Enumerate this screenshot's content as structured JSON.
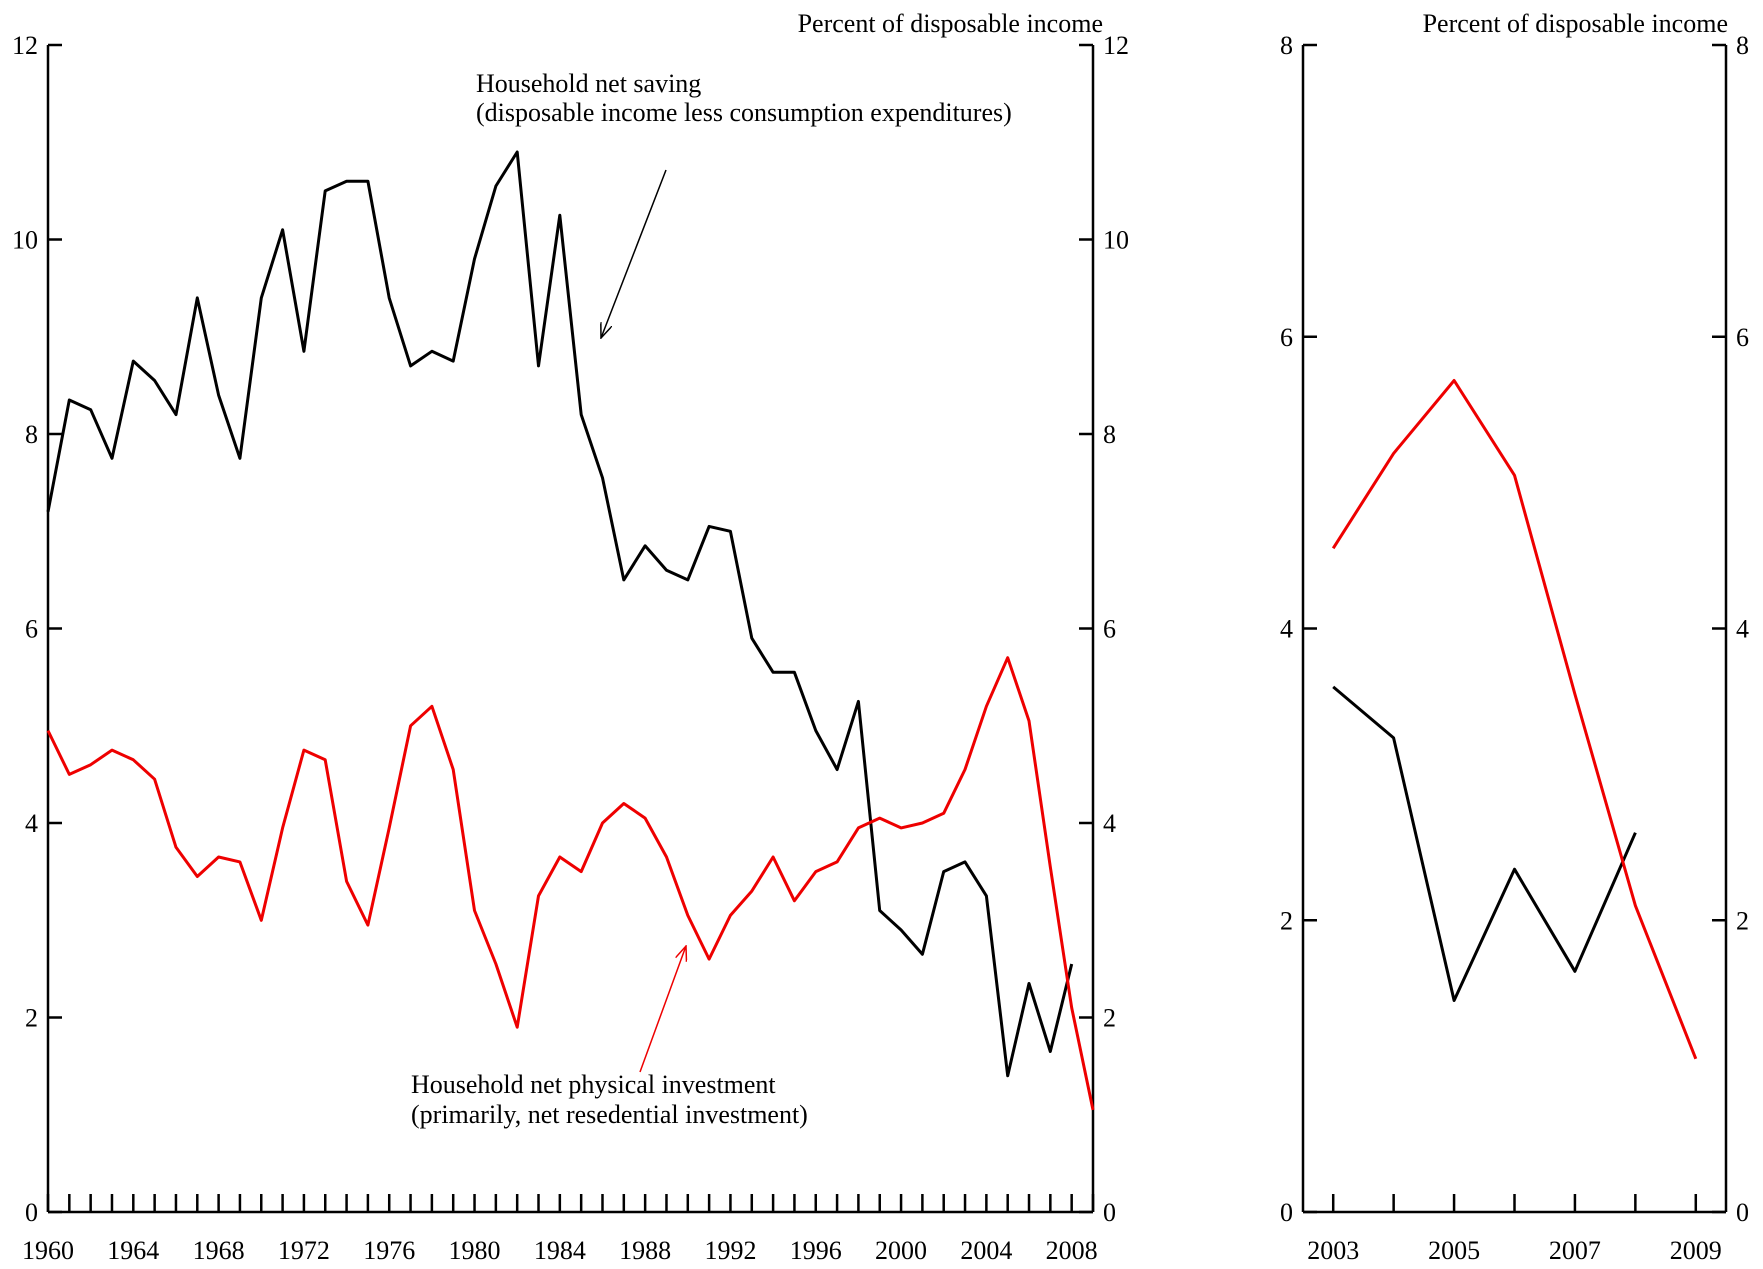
{
  "colors": {
    "saving": "#000000",
    "investment": "#ee0000",
    "axis": "#000000"
  },
  "chart_data": [
    {
      "type": "line",
      "units_label": "Percent of disposable income",
      "xlim": [
        1960,
        2009
      ],
      "ylim": [
        0,
        12
      ],
      "y_ticks": [
        0,
        2,
        4,
        6,
        8,
        10,
        12
      ],
      "x_tick_labels": [
        "1960",
        "1964",
        "1968",
        "1972",
        "1976",
        "1980",
        "1984",
        "1988",
        "1992",
        "1996",
        "2000",
        "2004",
        "2008"
      ],
      "grid": false,
      "annotations": {
        "saving": [
          "Household net saving",
          "(disposable income less consumption expenditures)"
        ],
        "investment": [
          "Household net physical investment",
          "(primarily, net resedential investment)"
        ]
      },
      "series": [
        {
          "key": "saving",
          "x": [
            1960,
            1961,
            1962,
            1963,
            1964,
            1965,
            1966,
            1967,
            1968,
            1969,
            1970,
            1971,
            1972,
            1973,
            1974,
            1975,
            1976,
            1977,
            1978,
            1979,
            1980,
            1981,
            1982,
            1983,
            1984,
            1985,
            1986,
            1987,
            1988,
            1989,
            1990,
            1991,
            1992,
            1993,
            1994,
            1995,
            1996,
            1997,
            1998,
            1999,
            2000,
            2001,
            2002,
            2003,
            2004,
            2005,
            2006,
            2007,
            2008
          ],
          "values": [
            7.2,
            8.35,
            8.25,
            7.75,
            8.75,
            8.55,
            8.2,
            9.4,
            8.4,
            7.75,
            9.4,
            10.1,
            8.85,
            10.5,
            10.6,
            10.6,
            9.4,
            8.7,
            8.85,
            8.75,
            9.8,
            10.55,
            10.9,
            8.7,
            10.25,
            8.2,
            7.55,
            6.5,
            6.85,
            6.6,
            6.5,
            7.05,
            7.0,
            5.9,
            5.55,
            5.55,
            4.95,
            4.55,
            5.25,
            3.1,
            2.9,
            2.65,
            3.5,
            3.6,
            3.25,
            1.4,
            2.35,
            1.65,
            2.55
          ]
        },
        {
          "key": "investment",
          "x": [
            1960,
            1961,
            1962,
            1963,
            1964,
            1965,
            1966,
            1967,
            1968,
            1969,
            1970,
            1971,
            1972,
            1973,
            1974,
            1975,
            1976,
            1977,
            1978,
            1979,
            1980,
            1981,
            1982,
            1983,
            1984,
            1985,
            1986,
            1987,
            1988,
            1989,
            1990,
            1991,
            1992,
            1993,
            1994,
            1995,
            1996,
            1997,
            1998,
            1999,
            2000,
            2001,
            2002,
            2003,
            2004,
            2005,
            2006,
            2007,
            2008,
            2009
          ],
          "values": [
            4.95,
            4.5,
            4.6,
            4.75,
            4.65,
            4.45,
            3.75,
            3.45,
            3.65,
            3.6,
            3.0,
            3.95,
            4.75,
            4.65,
            3.4,
            2.95,
            3.95,
            5.0,
            5.2,
            4.55,
            3.1,
            2.55,
            1.9,
            3.25,
            3.65,
            3.5,
            4.0,
            4.2,
            4.05,
            3.65,
            3.05,
            2.6,
            3.05,
            3.3,
            3.65,
            3.2,
            3.5,
            3.6,
            3.95,
            4.05,
            3.95,
            4.0,
            4.1,
            4.55,
            5.2,
            5.7,
            5.05,
            3.55,
            2.1,
            1.05
          ]
        }
      ]
    },
    {
      "type": "line",
      "units_label": "Percent of disposable income",
      "xlim": [
        2002.5,
        2009.5
      ],
      "ylim": [
        0,
        8
      ],
      "y_ticks": [
        0,
        2,
        4,
        6,
        8
      ],
      "x_tick_labels": [
        "2003",
        "2005",
        "2007",
        "2009"
      ],
      "grid": false,
      "series": [
        {
          "key": "saving",
          "x": [
            2003,
            2004,
            2005,
            2006,
            2007,
            2008
          ],
          "values": [
            3.6,
            3.25,
            1.45,
            2.35,
            1.65,
            2.6
          ]
        },
        {
          "key": "investment",
          "x": [
            2003,
            2004,
            2005,
            2006,
            2007,
            2008,
            2009
          ],
          "values": [
            4.55,
            5.2,
            5.7,
            5.05,
            3.55,
            2.1,
            1.05
          ]
        }
      ]
    }
  ]
}
